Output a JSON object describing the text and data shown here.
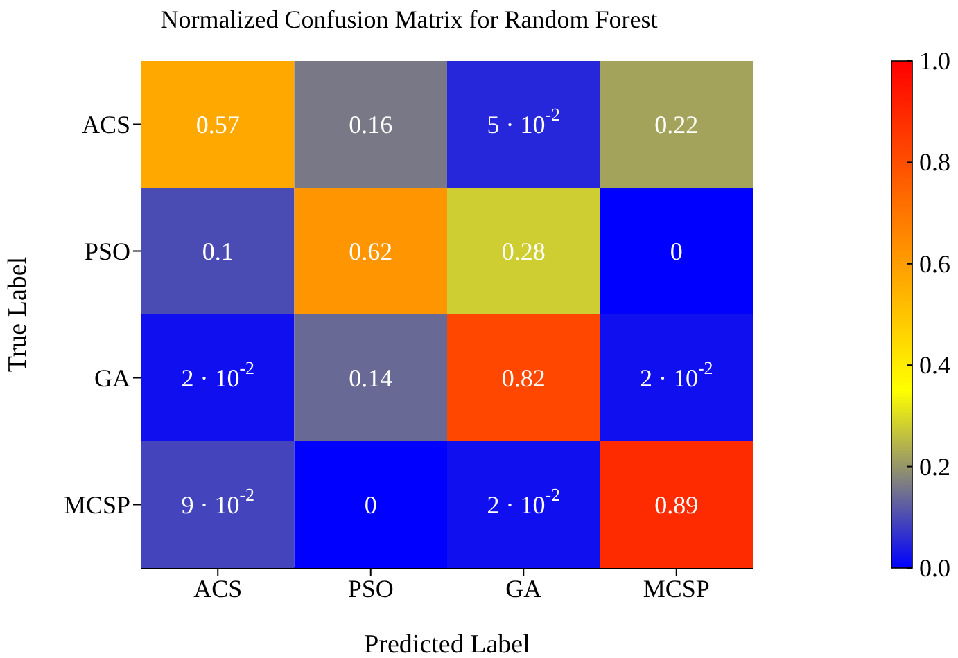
{
  "chart_data": {
    "type": "heatmap",
    "title": "Normalized Confusion Matrix for Random Forest",
    "xlabel": "Predicted Label",
    "ylabel": "True Label",
    "categories": [
      "ACS",
      "PSO",
      "GA",
      "MCSP"
    ],
    "y_categories": [
      "ACS",
      "PSO",
      "GA",
      "MCSP"
    ],
    "cells": [
      [
        0.57,
        0.16,
        0.05,
        0.22
      ],
      [
        0.1,
        0.62,
        0.28,
        0
      ],
      [
        0.02,
        0.14,
        0.82,
        0.02
      ],
      [
        0.09,
        0,
        0.02,
        0.89
      ]
    ],
    "cell_labels": [
      [
        "0.57",
        "0.16",
        "5 · 10$^{-2}$",
        "0.22"
      ],
      [
        "0.1",
        "0.62",
        "0.28",
        "0"
      ],
      [
        "2 · 10$^{-2}$",
        "0.14",
        "0.82",
        "2 · 10$^{-2}$"
      ],
      [
        "9 · 10$^{-2}$",
        "0",
        "2 · 10$^{-2}$",
        "0.89"
      ]
    ],
    "clim": [
      0,
      1
    ],
    "cticks": [
      {
        "value": 0,
        "label": "0.0"
      },
      0.2,
      0.4,
      0.6,
      0.8,
      {
        "value": 1,
        "label": "1.0"
      }
    ]
  }
}
